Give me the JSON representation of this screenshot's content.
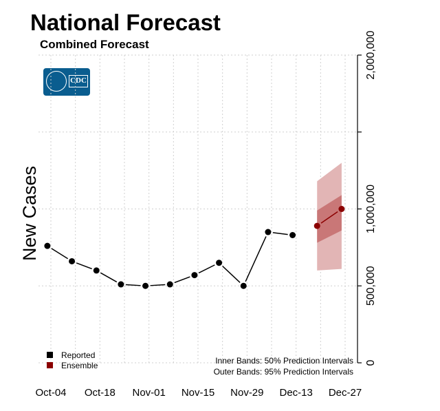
{
  "title": "National Forecast",
  "subtitle": "Combined Forecast",
  "logo": {
    "text": "CDC",
    "icon": "cdc-logo-icon"
  },
  "legend": [
    {
      "label": "Reported",
      "color": "#000000"
    },
    {
      "label": "Ensemble",
      "color": "#8b0000"
    }
  ],
  "notes": {
    "inner": "Inner Bands: 50% Prediction Intervals",
    "outer": "Outer Bands: 95% Prediction Intervals"
  },
  "chart_data": {
    "type": "line",
    "title": "National Forecast",
    "subtitle": "Combined Forecast",
    "ylabel": "New Cases",
    "xlabel": "",
    "ylim": [
      0,
      2000000
    ],
    "ytick_values": [
      0,
      500000,
      1000000,
      1500000,
      2000000
    ],
    "ytick_labels": [
      "0",
      "500,000",
      "1,000,000",
      "",
      "2,000,000"
    ],
    "xtick_labels": [
      "Oct-04",
      "Oct-18",
      "Nov-01",
      "Nov-15",
      "Nov-29",
      "Dec-13",
      "Dec-27"
    ],
    "grid": true,
    "legend_position": "bottom-left",
    "series": [
      {
        "name": "Reported",
        "color": "#000000",
        "x": [
          "Oct-03",
          "Oct-10",
          "Oct-17",
          "Oct-24",
          "Oct-31",
          "Nov-07",
          "Nov-14",
          "Nov-21",
          "Nov-28",
          "Dec-05",
          "Dec-12"
        ],
        "values": [
          760000,
          660000,
          600000,
          510000,
          500000,
          510000,
          570000,
          650000,
          500000,
          850000,
          830000
        ]
      },
      {
        "name": "Ensemble",
        "color": "#8b0000",
        "x": [
          "Dec-19",
          "Dec-26"
        ],
        "values": [
          890000,
          1000000
        ],
        "inner_lower": [
          780000,
          860000
        ],
        "inner_upper": [
          990000,
          1090000
        ],
        "outer_lower": [
          600000,
          610000
        ],
        "outer_upper": [
          1180000,
          1300000
        ]
      }
    ]
  }
}
